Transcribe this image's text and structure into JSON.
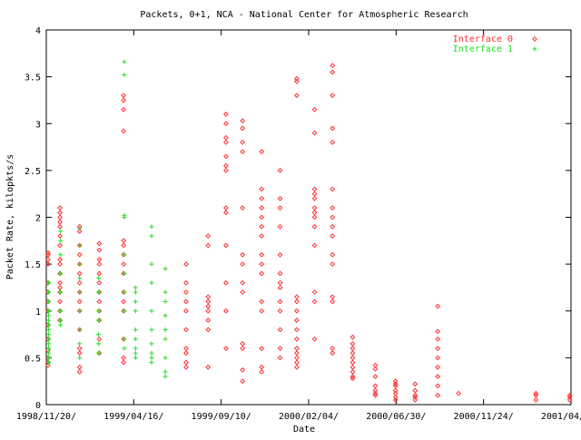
{
  "chart_data": {
    "type": "scatter",
    "title": "Packets, 0+1, NCA - National Center for Atmospheric Research",
    "xlabel": "Date",
    "ylabel": "Packet Rate, kilopkts/s",
    "x_tick_labels": [
      "1998/11/20/",
      "1999/04/16/",
      "1999/09/10/",
      "2000/02/04/",
      "2000/06/30/",
      "2000/11/24/",
      "2001/04/20/"
    ],
    "x_tick_days": [
      0,
      147,
      294,
      441,
      588,
      735,
      882
    ],
    "xlim": [
      0,
      882
    ],
    "y_ticks": [
      "0",
      "0.5",
      "1",
      "1.5",
      "2",
      "2.5",
      "3",
      "3.5",
      "4"
    ],
    "ylim": [
      0,
      4
    ],
    "grid": false,
    "legend_position": "top-right",
    "series": [
      {
        "name": "Interface 0",
        "color": "#ff3030",
        "marker": "diamond",
        "groups": [
          {
            "x": 3,
            "y": [
              0.42,
              0.45,
              0.5,
              0.58,
              0.7,
              0.85,
              1.0,
              1.1,
              1.2,
              1.3,
              1.5,
              1.55,
              1.6,
              1.62
            ]
          },
          {
            "x": 23,
            "y": [
              0.9,
              1.0,
              1.1,
              1.2,
              1.25,
              1.3,
              1.4,
              1.5,
              1.55,
              1.7,
              1.8,
              1.9,
              1.95,
              2.0,
              2.05,
              2.1
            ]
          },
          {
            "x": 56,
            "y": [
              0.35,
              0.4,
              0.55,
              0.6,
              0.8,
              1.0,
              1.1,
              1.2,
              1.3,
              1.4,
              1.5,
              1.6,
              1.7,
              1.85,
              1.9
            ]
          },
          {
            "x": 89,
            "y": [
              0.55,
              0.7,
              0.9,
              1.0,
              1.1,
              1.2,
              1.3,
              1.4,
              1.5,
              1.55,
              1.65,
              1.72
            ]
          },
          {
            "x": 130,
            "y": [
              0.45,
              0.5,
              0.7,
              1.0,
              1.1,
              1.2,
              1.4,
              1.5,
              1.6,
              1.7,
              1.75,
              2.92,
              3.15,
              3.25,
              3.3
            ]
          },
          {
            "x": 235,
            "y": [
              0.4,
              0.45,
              0.55,
              0.6,
              0.8,
              1.0,
              1.1,
              1.2,
              1.3,
              1.5
            ]
          },
          {
            "x": 272,
            "y": [
              0.4,
              0.8,
              0.9,
              1.0,
              1.05,
              1.1,
              1.15,
              1.7,
              1.8
            ]
          },
          {
            "x": 302,
            "y": [
              0.6,
              1.0,
              1.3,
              1.7,
              2.05,
              2.1,
              2.5,
              2.55,
              2.65,
              2.8,
              2.85,
              3.0,
              3.1
            ]
          },
          {
            "x": 330,
            "y": [
              0.25,
              0.37,
              0.6,
              0.65,
              1.2,
              1.3,
              1.5,
              1.6,
              2.1,
              2.7,
              2.8,
              2.95,
              3.03
            ]
          },
          {
            "x": 362,
            "y": [
              0.35,
              0.4,
              0.6,
              1.0,
              1.1,
              1.4,
              1.5,
              1.6,
              1.8,
              1.9,
              2.0,
              2.1,
              2.2,
              2.3,
              2.7
            ]
          },
          {
            "x": 393,
            "y": [
              0.5,
              0.6,
              0.8,
              1.0,
              1.1,
              1.25,
              1.3,
              1.4,
              1.6,
              1.9,
              2.1,
              2.2,
              2.5
            ]
          },
          {
            "x": 421,
            "y": [
              0.4,
              0.45,
              0.5,
              0.55,
              0.6,
              0.7,
              0.8,
              0.9,
              1.0,
              1.1,
              1.15,
              3.3,
              3.45,
              3.48
            ]
          },
          {
            "x": 451,
            "y": [
              0.7,
              1.1,
              1.2,
              1.7,
              1.9,
              2.0,
              2.05,
              2.1,
              2.2,
              2.25,
              2.3,
              2.9,
              3.15
            ]
          },
          {
            "x": 481,
            "y": [
              0.55,
              0.6,
              1.1,
              1.15,
              1.5,
              1.6,
              1.8,
              1.9,
              2.0,
              2.1,
              2.3,
              2.8,
              2.95,
              3.3,
              3.55,
              3.62
            ]
          },
          {
            "x": 515,
            "y": [
              0.28,
              0.3,
              0.35,
              0.4,
              0.45,
              0.5,
              0.55,
              0.6,
              0.65,
              0.72
            ]
          },
          {
            "x": 553,
            "y": [
              0.1,
              0.12,
              0.15,
              0.2,
              0.3,
              0.38,
              0.42
            ]
          },
          {
            "x": 587,
            "y": [
              0.05,
              0.08,
              0.12,
              0.15,
              0.2,
              0.22,
              0.25
            ]
          },
          {
            "x": 620,
            "y": [
              0.05,
              0.08,
              0.1,
              0.15,
              0.22
            ]
          },
          {
            "x": 658,
            "y": [
              0.1,
              0.2,
              0.3,
              0.4,
              0.5,
              0.6,
              0.7,
              0.78,
              1.05
            ]
          },
          {
            "x": 693,
            "y": [
              0.12
            ]
          },
          {
            "x": 823,
            "y": [
              0.05,
              0.1,
              0.12
            ]
          },
          {
            "x": 880,
            "y": [
              0.05,
              0.08,
              0.1
            ]
          }
        ]
      },
      {
        "name": "Interface 1",
        "color": "#20e020",
        "marker": "plus",
        "groups": [
          {
            "x": 4,
            "y": [
              0.45,
              0.5,
              0.55,
              0.6,
              0.65,
              0.7,
              0.75,
              0.8,
              0.85,
              0.9,
              0.95,
              1.0,
              1.1,
              1.2,
              1.3
            ]
          },
          {
            "x": 24,
            "y": [
              0.85,
              0.9,
              1.0,
              1.2,
              1.4,
              1.6,
              1.75,
              1.85
            ]
          },
          {
            "x": 56,
            "y": [
              0.5,
              0.65,
              0.8,
              1.0,
              1.2,
              1.35,
              1.5,
              1.7,
              1.88
            ]
          },
          {
            "x": 88,
            "y": [
              0.55,
              0.65,
              0.75,
              0.9,
              1.0,
              1.2,
              1.35
            ]
          },
          {
            "x": 131,
            "y": [
              0.6,
              0.7,
              1.0,
              1.2,
              1.4,
              1.6,
              2.0,
              2.02,
              3.52,
              3.66
            ]
          },
          {
            "x": 150,
            "y": [
              0.5,
              0.55,
              0.6,
              0.7,
              0.8,
              1.0,
              1.1,
              1.2,
              1.25
            ]
          },
          {
            "x": 177,
            "y": [
              0.45,
              0.5,
              0.55,
              0.65,
              0.8,
              1.0,
              1.3,
              1.5,
              1.8,
              1.9
            ]
          },
          {
            "x": 200,
            "y": [
              0.3,
              0.35,
              0.5,
              0.7,
              0.8,
              0.95,
              1.1,
              1.2,
              1.45
            ]
          }
        ]
      }
    ]
  }
}
